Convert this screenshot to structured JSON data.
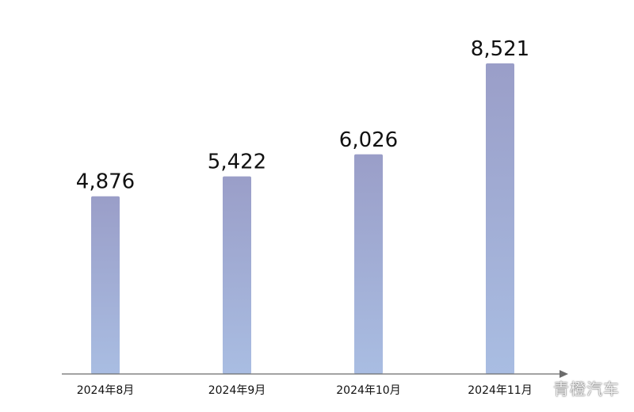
{
  "chart_data": {
    "type": "bar",
    "categories": [
      "2024年8月",
      "2024年9月",
      "2024年10月",
      "2024年11月"
    ],
    "values": [
      4876,
      5422,
      6026,
      8521
    ],
    "value_labels": [
      "4,876",
      "5,422",
      "6,026",
      "8,521"
    ],
    "title": "",
    "xlabel": "",
    "ylabel": "",
    "ylim": [
      0,
      9000
    ],
    "grid": false,
    "legend": "none",
    "colors": {
      "bar_top": "#9a9ec8",
      "bar_bottom": "#a9bde2",
      "axis": "#6c6c6c",
      "text": "#111111"
    }
  },
  "watermark": "青橙汽车"
}
